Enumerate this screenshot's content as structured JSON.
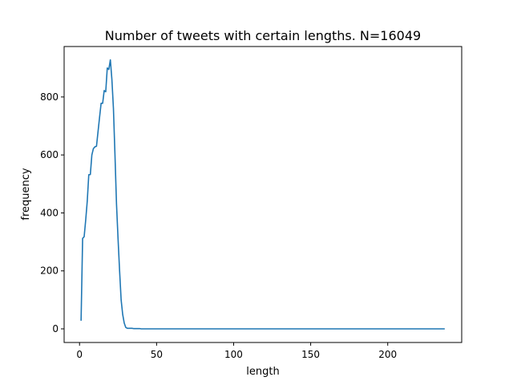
{
  "chart_data": {
    "type": "line",
    "title": "Number of tweets with certain lengths. N=16049",
    "xlabel": "length",
    "ylabel": "frequency",
    "xlim": [
      -10,
      248
    ],
    "ylim": [
      -47,
      974
    ],
    "xticks": [
      0,
      50,
      100,
      150,
      200
    ],
    "yticks": [
      0,
      200,
      400,
      600,
      800
    ],
    "grid": false,
    "legend": "none",
    "colors": {
      "line": "#1f77b4",
      "axes": "#000000",
      "background": "#ffffff"
    },
    "series": [
      {
        "x": [
          1,
          2,
          3,
          4,
          5,
          6,
          7,
          8,
          9,
          10,
          11,
          12,
          13,
          14,
          15,
          16,
          17,
          18,
          19,
          20,
          21,
          22,
          23,
          24,
          25,
          26,
          27,
          28,
          29,
          30,
          31,
          32,
          33,
          34,
          35,
          36,
          37,
          38,
          39,
          40,
          45,
          50,
          60,
          80,
          100,
          150,
          200,
          237
        ],
        "y": [
          28,
          312,
          318,
          375,
          440,
          532,
          532,
          600,
          622,
          628,
          630,
          680,
          730,
          778,
          778,
          822,
          818,
          900,
          895,
          928,
          860,
          760,
          600,
          430,
          310,
          200,
          100,
          50,
          20,
          5,
          2,
          2,
          2,
          2,
          1,
          1,
          1,
          1,
          1,
          0,
          0,
          0,
          0,
          0,
          0,
          0,
          0,
          0
        ]
      }
    ]
  }
}
